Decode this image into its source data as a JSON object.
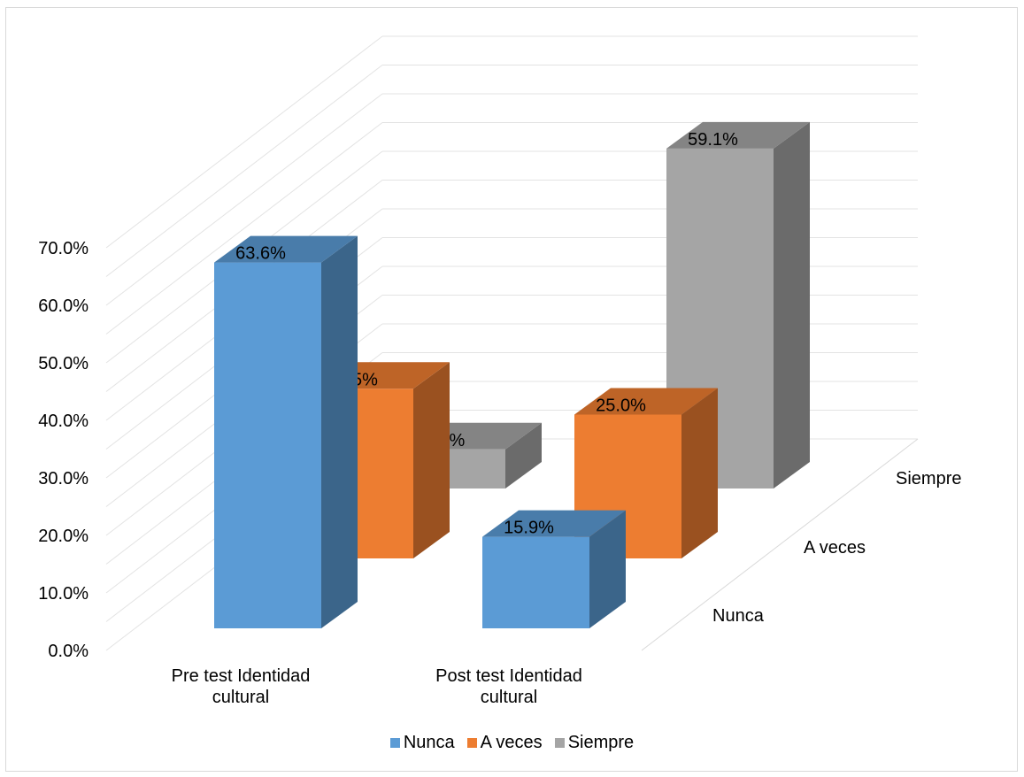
{
  "chart_data": {
    "type": "bar",
    "subtype": "3d-column",
    "title": "",
    "xlabel": "",
    "ylabel": "",
    "ylim": [
      0,
      0.7
    ],
    "y_ticks": [
      "0.0%",
      "10.0%",
      "20.0%",
      "30.0%",
      "40.0%",
      "50.0%",
      "60.0%",
      "70.0%"
    ],
    "categories": [
      "Pre test Identidad cultural",
      "Post test Identidad cultural"
    ],
    "depth_labels": [
      "Nunca",
      "A veces",
      "Siempre"
    ],
    "grid": true,
    "legend": "bottom",
    "series": [
      {
        "name": "Nunca",
        "values": [
          0.636,
          0.159
        ],
        "labels": [
          "63.6%",
          "15.9%"
        ],
        "color": "#5b9bd5"
      },
      {
        "name": "A veces",
        "values": [
          0.295,
          0.25
        ],
        "labels": [
          "29.5%",
          "25.0%"
        ],
        "color": "#ed7d31"
      },
      {
        "name": "Siempre",
        "values": [
          0.068,
          0.591
        ],
        "labels": [
          "6.8%",
          "59.1%"
        ],
        "color": "#a5a5a5"
      }
    ]
  }
}
